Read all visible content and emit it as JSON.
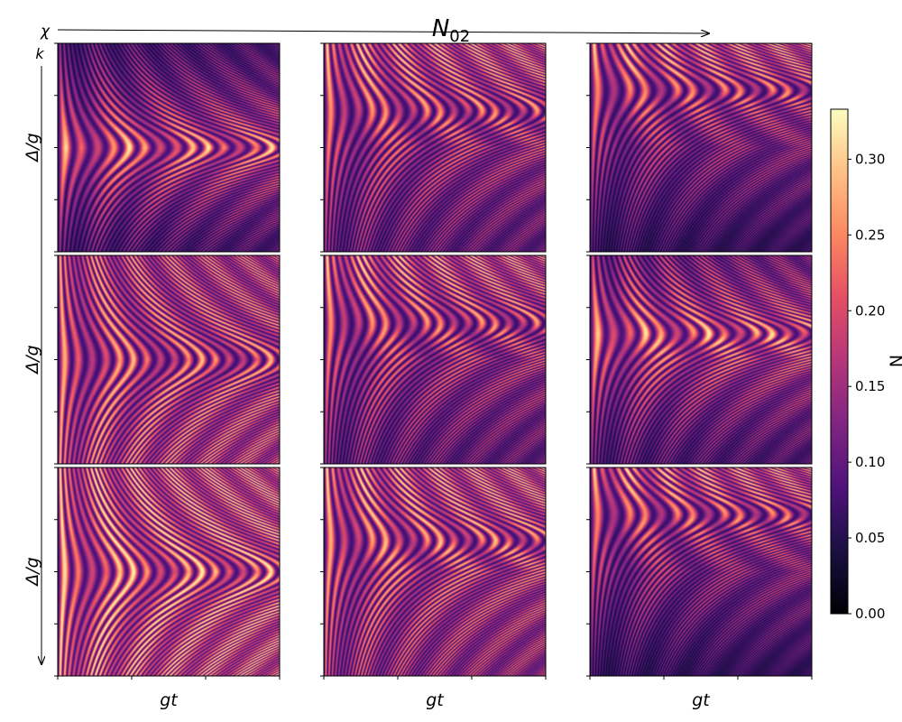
{
  "figure": {
    "title": "N",
    "title_subscript": "02",
    "chi_label": "χ",
    "k_label": "k",
    "colorbar_label": "N"
  },
  "chart_data": {
    "type": "heatmap",
    "layout": "3x3 grid of heatmaps",
    "title": "N_02",
    "xlabel": "gt",
    "ylabel": "Δ/g",
    "x_tick_labels_shown": false,
    "y_tick_labels_shown": false,
    "colormap": "magma",
    "colorbar": {
      "vmin": 0.0,
      "vmax": 0.333,
      "ticks": [
        0.0,
        0.05,
        0.1,
        0.15,
        0.2,
        0.25,
        0.3
      ],
      "tick_labels": [
        "0.00",
        "0.05",
        "0.10",
        "0.15",
        "0.20",
        "0.25",
        "0.30"
      ],
      "label": "N"
    },
    "panels": [
      {
        "row": 0,
        "col": 0,
        "pattern": "symmetric-chevron"
      },
      {
        "row": 0,
        "col": 1,
        "pattern": "upper-fan"
      },
      {
        "row": 0,
        "col": 2,
        "pattern": "upper-fan-strong"
      },
      {
        "row": 1,
        "col": 0,
        "pattern": "symmetric-fan"
      },
      {
        "row": 1,
        "col": 1,
        "pattern": "upper-fan"
      },
      {
        "row": 1,
        "col": 2,
        "pattern": "symmetric-chevron-high"
      },
      {
        "row": 2,
        "col": 0,
        "pattern": "symmetric-fan-bright"
      },
      {
        "row": 2,
        "col": 1,
        "pattern": "upper-fan-bright"
      },
      {
        "row": 2,
        "col": 2,
        "pattern": "upper-fan-strong"
      }
    ]
  }
}
